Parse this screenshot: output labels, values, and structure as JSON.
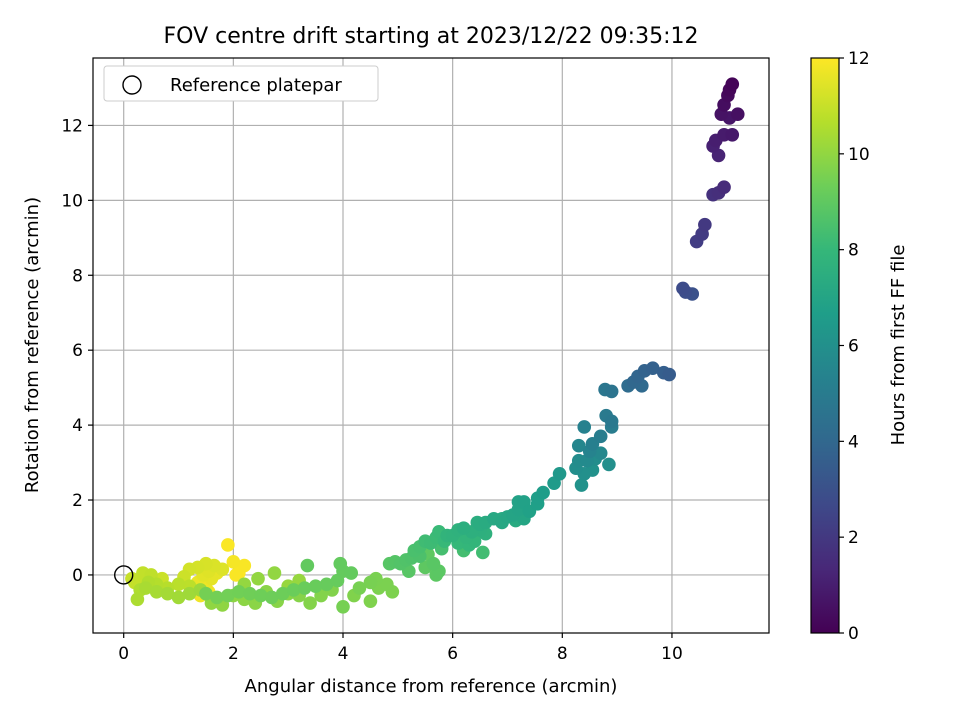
{
  "chart_data": {
    "type": "scatter",
    "title": "FOV centre drift starting at 2023/12/22 09:35:12",
    "xlabel": "Angular distance from reference (arcmin)",
    "ylabel": "Rotation from reference (arcmin)",
    "xlim": [
      -0.56,
      11.77
    ],
    "ylim": [
      -1.55,
      13.8
    ],
    "xticks": [
      0,
      2,
      4,
      6,
      8,
      10
    ],
    "yticks": [
      0,
      2,
      4,
      6,
      8,
      10,
      12
    ],
    "xtick_labels": [
      "0",
      "2",
      "4",
      "6",
      "8",
      "10"
    ],
    "ytick_labels": [
      "0",
      "2",
      "4",
      "6",
      "8",
      "10",
      "12"
    ],
    "grid": true,
    "legend": {
      "position": "top-left",
      "entries": [
        "Reference platepar"
      ]
    },
    "reference_point": {
      "x": 0,
      "y": 0,
      "label": "Reference platepar"
    },
    "colorbar": {
      "label": "Hours from first FF file",
      "min": 0,
      "max": 12,
      "ticks": [
        0,
        2,
        4,
        6,
        8,
        10,
        12
      ],
      "tick_labels": [
        "0",
        "2",
        "4",
        "6",
        "8",
        "10",
        "12"
      ],
      "colormap": [
        "#440154",
        "#482878",
        "#3e4989",
        "#31688e",
        "#26828e",
        "#1f9e89",
        "#35b779",
        "#6ece58",
        "#b5de2b",
        "#fde725"
      ]
    },
    "series": [
      {
        "name": "FOV centre drift",
        "points": [
          [
            11.1,
            13.1,
            0.1
          ],
          [
            11.05,
            12.95,
            0.2
          ],
          [
            11.02,
            12.8,
            0.3
          ],
          [
            10.95,
            12.55,
            0.4
          ],
          [
            11.2,
            12.3,
            0.5
          ],
          [
            10.9,
            12.3,
            0.6
          ],
          [
            11.05,
            12.2,
            0.7
          ],
          [
            11.1,
            11.75,
            0.8
          ],
          [
            10.95,
            11.75,
            0.9
          ],
          [
            10.8,
            11.6,
            1.0
          ],
          [
            10.75,
            11.45,
            1.1
          ],
          [
            10.85,
            11.2,
            1.2
          ],
          [
            10.95,
            10.35,
            1.5
          ],
          [
            10.85,
            10.2,
            1.6
          ],
          [
            10.75,
            10.15,
            1.7
          ],
          [
            10.6,
            9.35,
            2.0
          ],
          [
            10.55,
            9.1,
            2.1
          ],
          [
            10.45,
            8.9,
            2.2
          ],
          [
            10.2,
            7.65,
            2.8
          ],
          [
            10.25,
            7.55,
            2.9
          ],
          [
            10.37,
            7.5,
            3.0
          ],
          [
            9.95,
            5.35,
            3.5
          ],
          [
            9.85,
            5.4,
            3.6
          ],
          [
            9.65,
            5.52,
            3.7
          ],
          [
            9.5,
            5.45,
            3.8
          ],
          [
            9.38,
            5.3,
            3.9
          ],
          [
            9.3,
            5.15,
            4.0
          ],
          [
            9.45,
            5.05,
            4.1
          ],
          [
            9.2,
            5.05,
            4.2
          ],
          [
            8.9,
            4.9,
            4.6
          ],
          [
            8.78,
            4.95,
            4.7
          ],
          [
            8.9,
            4.1,
            4.8
          ],
          [
            8.8,
            4.25,
            4.9
          ],
          [
            8.9,
            3.95,
            5.0
          ],
          [
            8.7,
            3.7,
            5.1
          ],
          [
            8.55,
            3.5,
            5.2
          ],
          [
            8.4,
            3.95,
            5.3
          ],
          [
            8.5,
            3.3,
            5.4
          ],
          [
            8.3,
            3.45,
            5.5
          ],
          [
            8.7,
            3.25,
            5.6
          ],
          [
            8.45,
            3.05,
            5.7
          ],
          [
            8.3,
            3.05,
            5.8
          ],
          [
            8.6,
            3.1,
            5.85
          ],
          [
            8.25,
            2.85,
            5.9
          ],
          [
            8.85,
            2.95,
            5.95
          ],
          [
            8.4,
            2.7,
            6.0
          ],
          [
            8.55,
            2.8,
            6.05
          ],
          [
            8.35,
            2.4,
            6.1
          ],
          [
            7.95,
            2.7,
            6.4
          ],
          [
            7.85,
            2.45,
            6.5
          ],
          [
            7.65,
            2.2,
            6.6
          ],
          [
            7.55,
            2.05,
            6.7
          ],
          [
            7.55,
            1.9,
            6.75
          ],
          [
            7.4,
            1.7,
            6.8
          ],
          [
            7.3,
            1.95,
            6.85
          ],
          [
            7.2,
            1.95,
            6.9
          ],
          [
            7.2,
            1.75,
            6.95
          ],
          [
            7.1,
            1.6,
            7.0
          ],
          [
            7.3,
            1.5,
            7.05
          ],
          [
            7.0,
            1.55,
            7.1
          ],
          [
            6.9,
            1.4,
            7.15
          ],
          [
            6.75,
            1.5,
            7.2
          ],
          [
            6.9,
            1.5,
            7.25
          ],
          [
            7.15,
            1.45,
            7.3
          ],
          [
            6.6,
            1.4,
            7.35
          ],
          [
            6.5,
            1.35,
            7.4
          ],
          [
            6.45,
            1.4,
            7.45
          ],
          [
            6.2,
            1.25,
            7.5
          ],
          [
            6.35,
            1.15,
            7.55
          ],
          [
            6.5,
            1.2,
            7.6
          ],
          [
            6.6,
            1.1,
            7.65
          ],
          [
            6.1,
            1.2,
            7.7
          ],
          [
            6.0,
            1.05,
            7.75
          ],
          [
            5.9,
            1.05,
            7.8
          ],
          [
            6.25,
            1.0,
            7.85
          ],
          [
            6.4,
            0.9,
            7.9
          ],
          [
            6.3,
            0.8,
            7.95
          ],
          [
            6.1,
            0.85,
            8.0
          ],
          [
            5.85,
            0.9,
            8.05
          ],
          [
            5.75,
            1.15,
            8.1
          ],
          [
            5.7,
            1.0,
            8.15
          ],
          [
            5.6,
            0.85,
            8.2
          ],
          [
            5.5,
            0.9,
            8.25
          ],
          [
            6.55,
            0.6,
            8.3
          ],
          [
            6.2,
            0.65,
            8.35
          ],
          [
            5.8,
            0.7,
            8.4
          ],
          [
            5.4,
            0.75,
            8.45
          ],
          [
            5.3,
            0.65,
            8.5
          ],
          [
            5.4,
            0.5,
            8.55
          ],
          [
            5.25,
            0.45,
            8.6
          ],
          [
            5.15,
            0.4,
            8.65
          ],
          [
            5.05,
            0.3,
            8.7
          ],
          [
            4.95,
            0.35,
            8.75
          ],
          [
            4.85,
            0.3,
            8.8
          ],
          [
            5.2,
            0.1,
            8.82
          ],
          [
            5.65,
            0.3,
            8.85
          ],
          [
            5.75,
            0.1,
            8.9
          ],
          [
            5.7,
            0.0,
            8.92
          ],
          [
            5.5,
            0.2,
            8.95
          ],
          [
            5.55,
            0.55,
            8.98
          ],
          [
            3.35,
            0.25,
            9.05
          ],
          [
            3.95,
            0.3,
            9.08
          ],
          [
            4.15,
            0.05,
            9.1
          ],
          [
            4.0,
            0.1,
            9.12
          ],
          [
            3.9,
            -0.15,
            9.15
          ],
          [
            3.7,
            -0.25,
            9.18
          ],
          [
            3.5,
            -0.3,
            9.2
          ],
          [
            3.3,
            -0.35,
            9.22
          ],
          [
            3.1,
            -0.4,
            9.25
          ],
          [
            2.9,
            -0.5,
            9.28
          ],
          [
            2.7,
            -0.6,
            9.3
          ],
          [
            2.5,
            -0.55,
            9.32
          ],
          [
            2.3,
            -0.5,
            9.35
          ],
          [
            2.1,
            -0.45,
            9.38
          ],
          [
            1.9,
            -0.55,
            9.4
          ],
          [
            1.7,
            -0.6,
            9.42
          ],
          [
            1.5,
            -0.5,
            9.45
          ],
          [
            4.0,
            -0.85,
            9.48
          ],
          [
            4.3,
            -0.35,
            9.5
          ],
          [
            4.5,
            -0.2,
            9.52
          ],
          [
            4.6,
            -0.1,
            9.55
          ],
          [
            4.8,
            -0.25,
            9.58
          ],
          [
            4.65,
            -0.35,
            9.6
          ],
          [
            4.9,
            -0.45,
            9.62
          ],
          [
            4.5,
            -0.7,
            9.65
          ],
          [
            4.2,
            -0.55,
            9.68
          ],
          [
            3.8,
            -0.4,
            9.7
          ],
          [
            3.6,
            -0.55,
            9.72
          ],
          [
            3.4,
            -0.75,
            9.75
          ],
          [
            3.2,
            -0.55,
            9.78
          ],
          [
            3.0,
            -0.5,
            9.8
          ],
          [
            2.8,
            -0.7,
            9.82
          ],
          [
            2.6,
            -0.45,
            9.85
          ],
          [
            2.4,
            -0.75,
            9.88
          ],
          [
            2.2,
            -0.65,
            9.9
          ],
          [
            2.0,
            -0.55,
            9.92
          ],
          [
            1.8,
            -0.8,
            9.95
          ],
          [
            1.6,
            -0.75,
            9.98
          ],
          [
            2.75,
            0.05,
            10.0
          ],
          [
            2.45,
            -0.1,
            10.02
          ],
          [
            2.2,
            -0.25,
            10.05
          ],
          [
            3.2,
            -0.15,
            10.08
          ],
          [
            3.0,
            -0.3,
            10.1
          ],
          [
            1.4,
            -0.4,
            10.2
          ],
          [
            1.2,
            -0.5,
            10.25
          ],
          [
            1.0,
            -0.6,
            10.3
          ],
          [
            0.8,
            -0.5,
            10.35
          ],
          [
            0.6,
            -0.45,
            10.4
          ],
          [
            0.4,
            -0.35,
            10.45
          ],
          [
            0.25,
            -0.65,
            10.5
          ],
          [
            0.3,
            -0.4,
            10.55
          ],
          [
            0.45,
            -0.2,
            10.6
          ],
          [
            0.6,
            -0.25,
            10.65
          ],
          [
            0.8,
            -0.35,
            10.7
          ],
          [
            1.0,
            -0.25,
            10.75
          ],
          [
            1.2,
            -0.3,
            10.8
          ],
          [
            0.5,
            0.0,
            10.85
          ],
          [
            0.35,
            0.05,
            10.9
          ],
          [
            0.2,
            -0.2,
            10.95
          ],
          [
            0.15,
            -0.1,
            11.0
          ],
          [
            0.3,
            -0.15,
            11.02
          ],
          [
            0.7,
            -0.1,
            11.05
          ],
          [
            1.1,
            -0.05,
            11.1
          ],
          [
            1.2,
            0.15,
            11.2
          ],
          [
            1.35,
            0.2,
            11.25
          ],
          [
            1.5,
            0.3,
            11.3
          ],
          [
            1.65,
            0.25,
            11.35
          ],
          [
            1.8,
            0.15,
            11.4
          ],
          [
            1.55,
            0.1,
            11.45
          ],
          [
            1.45,
            0.0,
            11.5
          ],
          [
            1.6,
            -0.1,
            11.55
          ],
          [
            1.7,
            0.05,
            11.6
          ],
          [
            1.35,
            -0.2,
            11.65
          ],
          [
            1.5,
            -0.35,
            11.7
          ],
          [
            1.4,
            -0.55,
            11.75
          ],
          [
            1.55,
            -0.45,
            11.8
          ],
          [
            2.0,
            0.35,
            11.85
          ],
          [
            2.2,
            0.25,
            11.9
          ],
          [
            2.05,
            0.0,
            11.92
          ],
          [
            1.9,
            0.8,
            11.95
          ],
          [
            2.1,
            0.05,
            11.98
          ]
        ]
      }
    ]
  }
}
